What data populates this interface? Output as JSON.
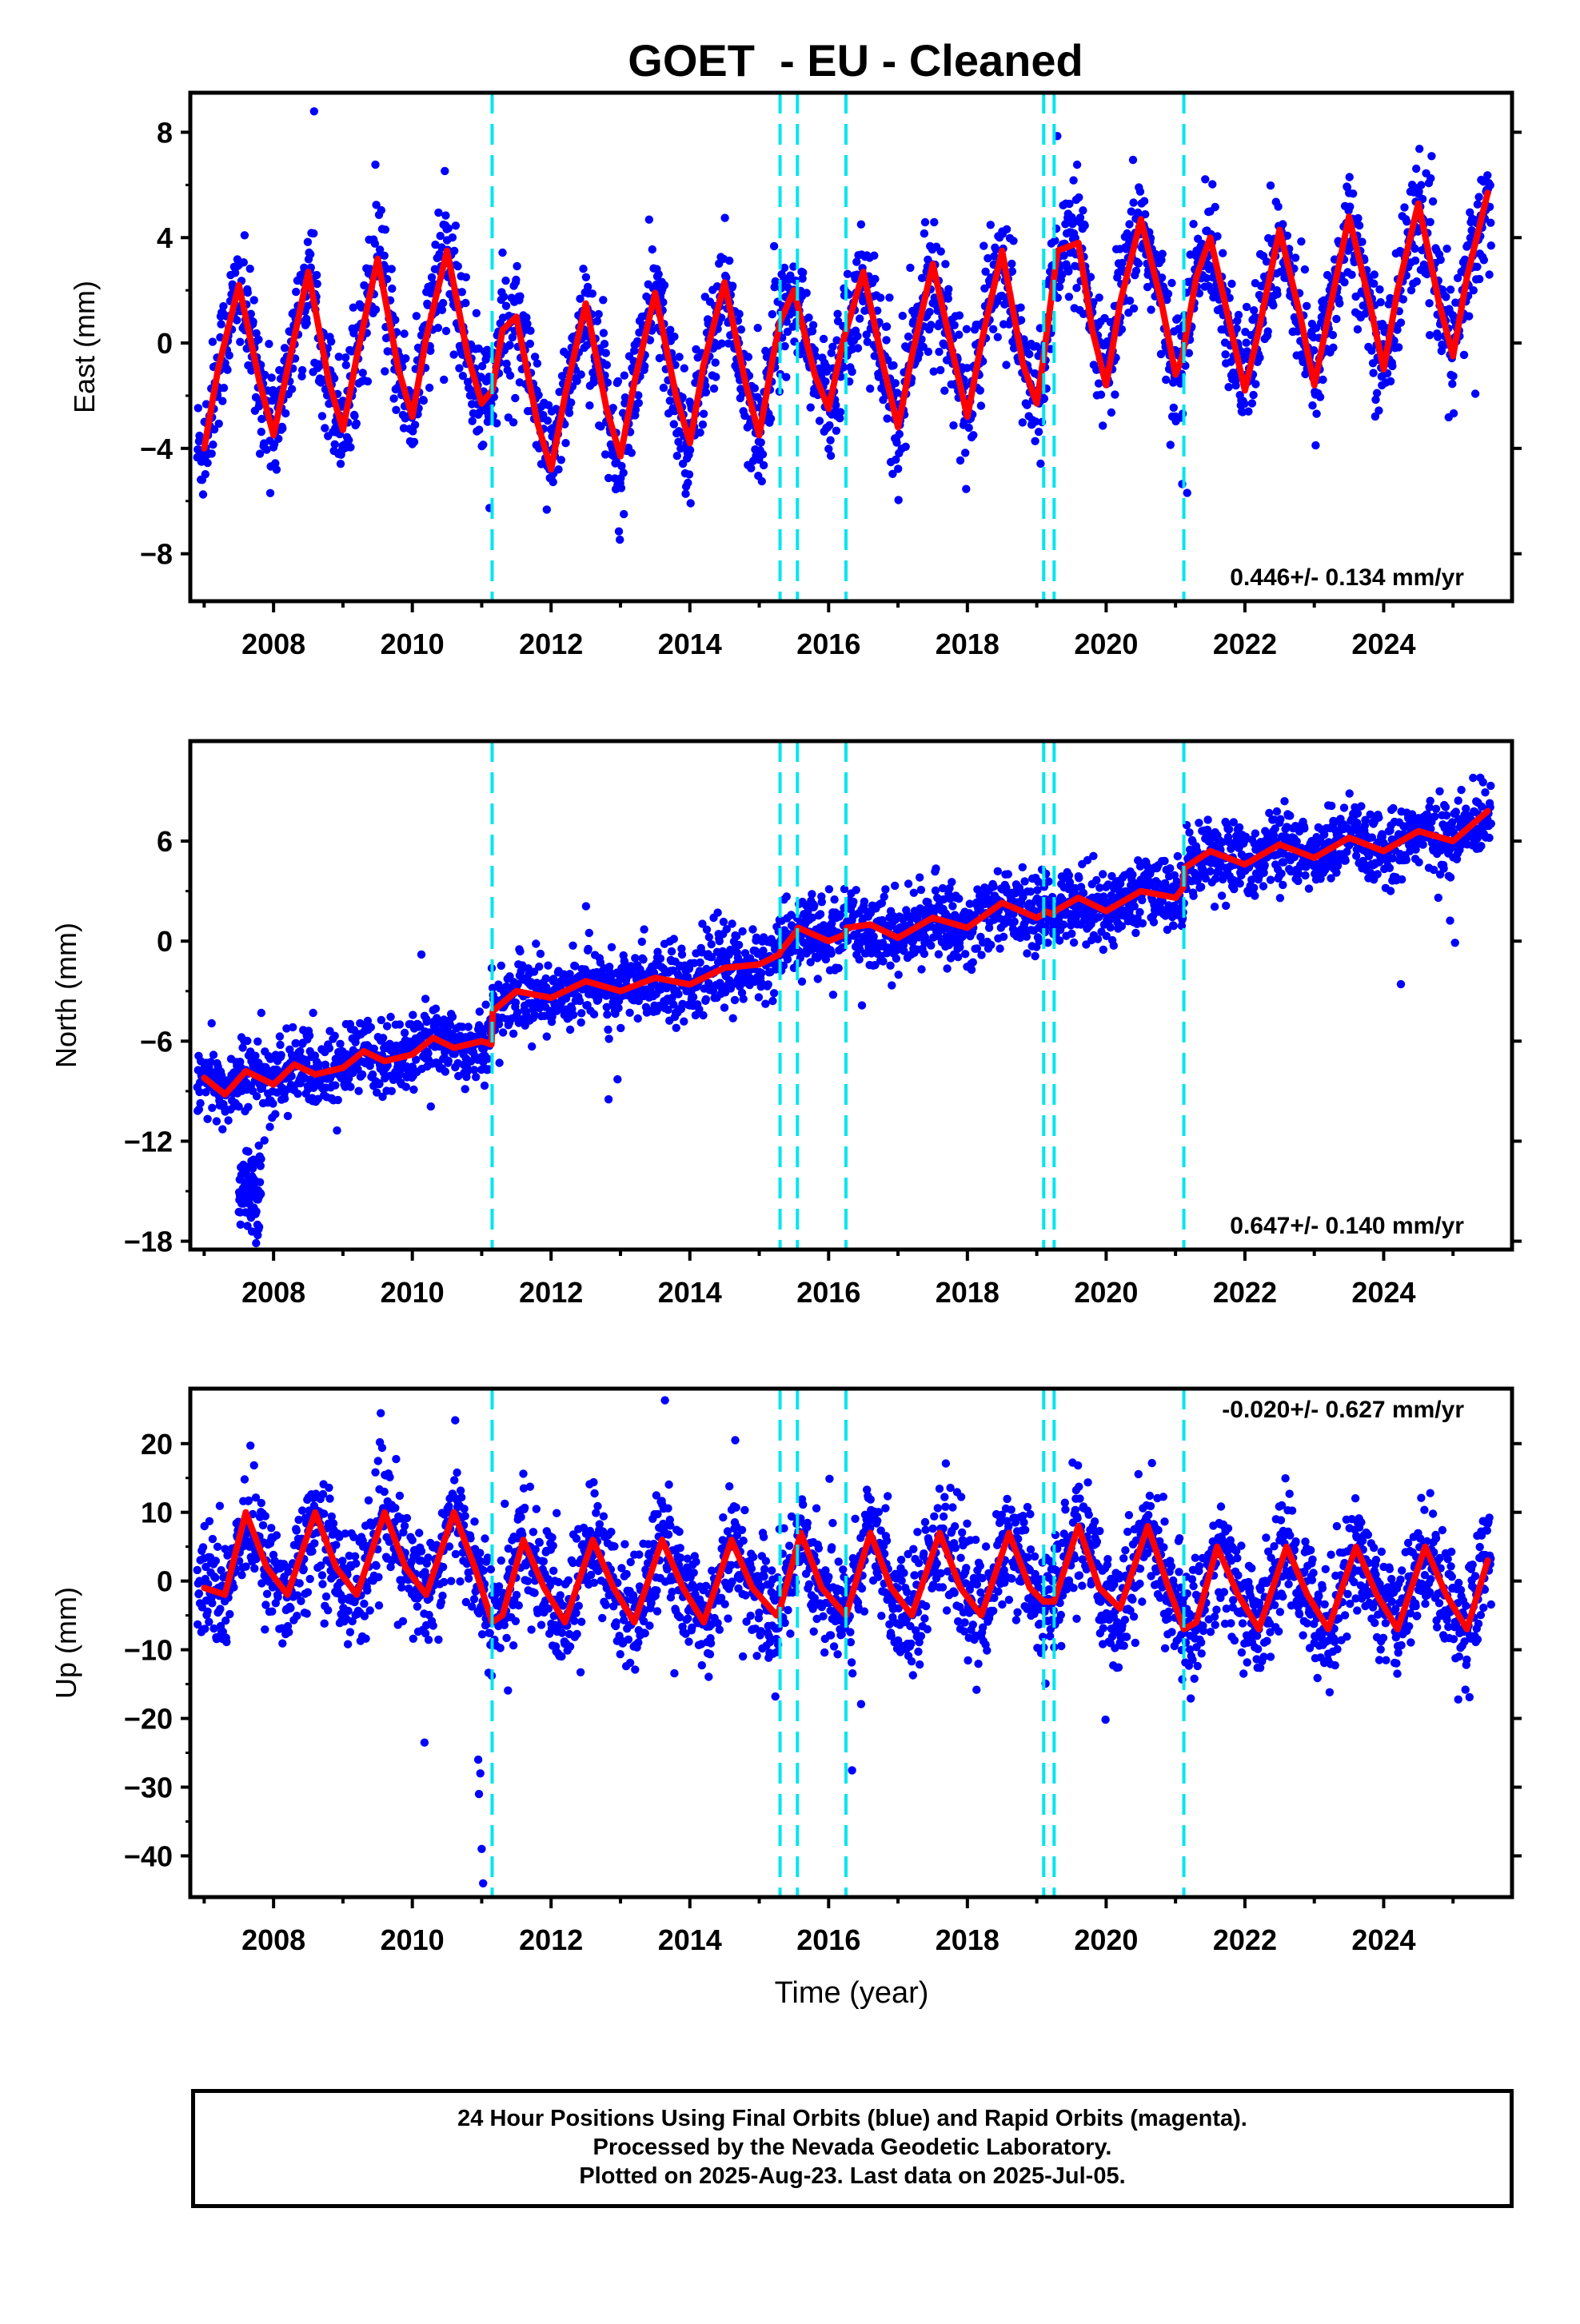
{
  "title": "GOET  - EU - Cleaned",
  "xlabel": "Time (year)",
  "footer": [
    "24 Hour Positions Using Final Orbits (blue) and Rapid Orbits (magenta).",
    "Processed by the Nevada Geodetic Laboratory.",
    "Plotted on 2025-Aug-23. Last data on 2025-Jul-05."
  ],
  "colors": {
    "points": "#0000ff",
    "model": "#ff0000",
    "steps": "#00e5ee",
    "axes": "#000000"
  },
  "chart_data": [
    {
      "type": "scatter",
      "name": "East",
      "ylabel": "East (mm)",
      "xlim": [
        2006.8,
        2025.85
      ],
      "ylim": [
        -9.8,
        9.5
      ],
      "yticks": [
        8,
        4,
        0,
        -4,
        -8
      ],
      "xticks": [
        2008,
        2010,
        2012,
        2014,
        2016,
        2018,
        2020,
        2022,
        2024
      ],
      "rate": "0.446+/- 0.134 mm/yr",
      "rate_position": "bottom-right",
      "steps": [
        2011.15,
        2015.3,
        2015.55,
        2016.25,
        2019.1,
        2019.25,
        2021.12
      ],
      "model": {
        "x": [
          2007.0,
          2007.2,
          2007.5,
          2007.8,
          2008.0,
          2008.2,
          2008.5,
          2008.8,
          2009.0,
          2009.2,
          2009.5,
          2009.8,
          2010.0,
          2010.2,
          2010.5,
          2010.8,
          2011.0,
          2011.15,
          2011.3,
          2011.5,
          2011.8,
          2012.0,
          2012.2,
          2012.5,
          2012.8,
          2013.0,
          2013.2,
          2013.5,
          2013.8,
          2014.0,
          2014.2,
          2014.5,
          2014.8,
          2015.0,
          2015.2,
          2015.3,
          2015.5,
          2015.8,
          2016.0,
          2016.2,
          2016.5,
          2016.8,
          2017.0,
          2017.2,
          2017.5,
          2017.8,
          2018.0,
          2018.2,
          2018.5,
          2018.8,
          2019.0,
          2019.1,
          2019.3,
          2019.6,
          2019.8,
          2020.0,
          2020.2,
          2020.5,
          2020.8,
          2021.0,
          2021.1,
          2021.3,
          2021.5,
          2021.8,
          2022.0,
          2022.2,
          2022.5,
          2022.8,
          2023.0,
          2023.2,
          2023.5,
          2023.8,
          2024.0,
          2024.2,
          2024.5,
          2024.8,
          2025.0,
          2025.2,
          2025.5
        ],
        "y": [
          -4.0,
          -1.0,
          2.2,
          -1.5,
          -3.5,
          -1.0,
          2.7,
          -1.5,
          -3.3,
          -0.5,
          3.2,
          -1.0,
          -2.8,
          0.2,
          3.5,
          -0.5,
          -2.3,
          -1.8,
          0.5,
          1.0,
          -3.0,
          -4.8,
          -2.0,
          1.5,
          -2.5,
          -4.3,
          -1.5,
          1.9,
          -2.0,
          -3.8,
          -0.8,
          2.3,
          -1.5,
          -3.5,
          -0.5,
          0.8,
          2.0,
          -1.2,
          -2.5,
          0.0,
          2.7,
          -1.0,
          -3.2,
          -0.5,
          3.0,
          -0.5,
          -2.8,
          0.0,
          3.5,
          -0.8,
          -2.3,
          -0.5,
          3.5,
          3.8,
          0.5,
          -1.6,
          1.5,
          4.7,
          1.5,
          -1.2,
          -0.5,
          2.5,
          4.0,
          0.5,
          -1.8,
          0.5,
          4.3,
          1.0,
          -1.6,
          1.0,
          4.8,
          1.5,
          -1.0,
          2.0,
          5.3,
          1.5,
          -0.5,
          2.5,
          5.7
        ]
      }
    },
    {
      "type": "scatter",
      "name": "North",
      "ylabel": "North (mm)",
      "xlim": [
        2006.8,
        2025.85
      ],
      "ylim": [
        -18.5,
        12.0
      ],
      "yticks": [
        6,
        0,
        -6,
        -12,
        -18
      ],
      "xticks": [
        2008,
        2010,
        2012,
        2014,
        2016,
        2018,
        2020,
        2022,
        2024
      ],
      "rate": "0.647+/- 0.140 mm/yr",
      "rate_position": "bottom-right",
      "steps": [
        2011.15,
        2015.3,
        2015.55,
        2016.25,
        2019.1,
        2019.25,
        2021.12
      ],
      "model": {
        "x": [
          2007.0,
          2007.3,
          2007.6,
          2008.0,
          2008.3,
          2008.6,
          2009.0,
          2009.3,
          2009.6,
          2010.0,
          2010.3,
          2010.6,
          2011.0,
          2011.14,
          2011.16,
          2011.5,
          2012.0,
          2012.5,
          2013.0,
          2013.5,
          2014.0,
          2014.5,
          2015.0,
          2015.29,
          2015.31,
          2015.54,
          2015.56,
          2016.0,
          2016.24,
          2016.26,
          2016.6,
          2017.0,
          2017.5,
          2018.0,
          2018.5,
          2019.0,
          2019.09,
          2019.11,
          2019.24,
          2019.26,
          2019.6,
          2020.0,
          2020.5,
          2021.0,
          2021.11,
          2021.13,
          2021.5,
          2022.0,
          2022.5,
          2023.0,
          2023.5,
          2024.0,
          2024.5,
          2025.0,
          2025.5
        ],
        "y": [
          -8.2,
          -9.2,
          -7.8,
          -8.6,
          -7.4,
          -8.0,
          -7.6,
          -6.6,
          -7.2,
          -6.8,
          -5.8,
          -6.4,
          -6.0,
          -6.2,
          -4.2,
          -3.0,
          -3.4,
          -2.4,
          -3.0,
          -2.2,
          -2.6,
          -1.6,
          -1.4,
          -0.8,
          -0.6,
          0.6,
          0.8,
          0.0,
          0.4,
          0.8,
          1.0,
          0.2,
          1.4,
          0.8,
          2.3,
          1.4,
          1.6,
          1.8,
          1.6,
          1.8,
          2.6,
          1.8,
          3.0,
          2.6,
          3.2,
          4.4,
          5.4,
          4.6,
          5.8,
          5.0,
          6.2,
          5.4,
          6.6,
          6.0,
          7.8
        ]
      }
    },
    {
      "type": "scatter",
      "name": "Up",
      "ylabel": "Up (mm)",
      "xlim": [
        2006.8,
        2025.85
      ],
      "ylim": [
        -46,
        28
      ],
      "yticks": [
        20,
        10,
        0,
        -10,
        -20,
        -30,
        -40
      ],
      "xticks": [
        2008,
        2010,
        2012,
        2014,
        2016,
        2018,
        2020,
        2022,
        2024
      ],
      "rate": "-0.020+/- 0.627 mm/yr",
      "rate_position": "top-right",
      "steps": [
        2011.15,
        2015.3,
        2015.55,
        2016.25,
        2019.1,
        2019.25,
        2021.12
      ],
      "model": {
        "x": [
          2007.0,
          2007.3,
          2007.6,
          2007.9,
          2008.2,
          2008.6,
          2008.9,
          2009.2,
          2009.6,
          2009.9,
          2010.2,
          2010.6,
          2010.9,
          2011.15,
          2011.3,
          2011.6,
          2011.9,
          2012.2,
          2012.6,
          2012.9,
          2013.2,
          2013.6,
          2013.9,
          2014.2,
          2014.6,
          2014.9,
          2015.25,
          2015.3,
          2015.6,
          2015.9,
          2016.25,
          2016.6,
          2016.9,
          2017.2,
          2017.6,
          2017.9,
          2018.2,
          2018.6,
          2018.9,
          2019.1,
          2019.25,
          2019.6,
          2019.9,
          2020.2,
          2020.6,
          2020.9,
          2021.12,
          2021.3,
          2021.6,
          2021.9,
          2022.2,
          2022.6,
          2022.9,
          2023.2,
          2023.6,
          2023.9,
          2024.2,
          2024.6,
          2024.9,
          2025.2,
          2025.5
        ],
        "y": [
          -1,
          -2,
          10,
          2,
          -2,
          10,
          2,
          -2,
          10,
          2,
          -2,
          10,
          2,
          -6,
          -5,
          6,
          -1,
          -6,
          6,
          -1,
          -6,
          6,
          -1,
          -6,
          6,
          -1,
          -5,
          -4,
          7,
          -1,
          -5,
          7,
          -1,
          -5,
          7,
          -1,
          -5,
          7,
          -1,
          -3,
          -3,
          8,
          -1,
          -4,
          8,
          -1,
          -7,
          -6,
          5,
          -2,
          -7,
          5,
          -2,
          -7,
          5,
          -2,
          -7,
          5,
          -2,
          -7,
          3
        ]
      }
    }
  ]
}
